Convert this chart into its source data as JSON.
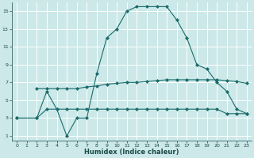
{
  "xlabel": "Humidex (Indice chaleur)",
  "bg_color": "#cce8e8",
  "grid_color": "#ffffff",
  "line_color": "#1a6b6b",
  "xlim": [
    -0.5,
    23.5
  ],
  "ylim": [
    0.5,
    16
  ],
  "xticks": [
    0,
    1,
    2,
    3,
    4,
    5,
    6,
    7,
    8,
    9,
    10,
    11,
    12,
    13,
    14,
    15,
    16,
    17,
    18,
    19,
    20,
    21,
    22,
    23
  ],
  "yticks": [
    1,
    3,
    5,
    7,
    9,
    11,
    13,
    15
  ],
  "line1_x": [
    0,
    2,
    3,
    4,
    5,
    6,
    7,
    8,
    9,
    10,
    11,
    12,
    13,
    14,
    15,
    16,
    17,
    18,
    19,
    20,
    21,
    22,
    23
  ],
  "line1_y": [
    3,
    3,
    6,
    4,
    1,
    3,
    3,
    8,
    12,
    13,
    15,
    15.5,
    15.5,
    15.5,
    15.5,
    14,
    12,
    9,
    8.5,
    7,
    6,
    4,
    3.5
  ],
  "line2_x": [
    0,
    2,
    3,
    4,
    5,
    6,
    7,
    8,
    9,
    10,
    11,
    12,
    13,
    14,
    15,
    16,
    17,
    18,
    19,
    20,
    21,
    22,
    23
  ],
  "line2_y": [
    3,
    3,
    4,
    4,
    4,
    4,
    4,
    4,
    4,
    4,
    4,
    4,
    4,
    4,
    4,
    4,
    4,
    4,
    4,
    4,
    3.5,
    3.5,
    3.5
  ],
  "line3_x": [
    2,
    3,
    4,
    5,
    6,
    7,
    8,
    9,
    10,
    11,
    12,
    13,
    14,
    15,
    16,
    17,
    18,
    19,
    20,
    21,
    22,
    23
  ],
  "line3_y": [
    6.3,
    6.3,
    6.3,
    6.3,
    6.3,
    6.5,
    6.6,
    6.8,
    6.9,
    7.0,
    7.0,
    7.1,
    7.2,
    7.3,
    7.3,
    7.3,
    7.3,
    7.3,
    7.3,
    7.2,
    7.1,
    6.9
  ]
}
